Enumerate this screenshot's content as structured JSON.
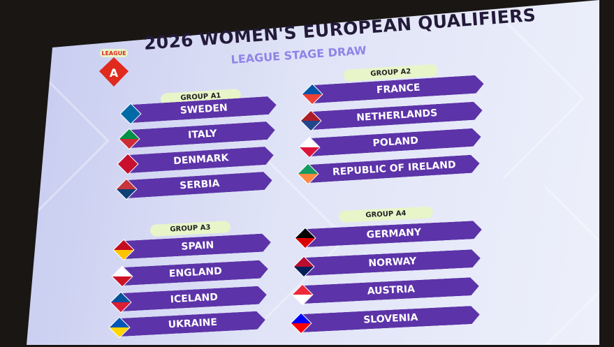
{
  "title": "2026 WOMEN'S EUROPEAN QUALIFIERS",
  "subtitle": "LEAGUE STAGE DRAW",
  "logo": {
    "top": "LEAGUE",
    "letter": "A",
    "color": "#e02a1e"
  },
  "bar_color": "#5c33a8",
  "groups": [
    {
      "name": "GROUP A1",
      "teams": [
        "SWEDEN",
        "ITALY",
        "DENMARK",
        "SERBIA"
      ]
    },
    {
      "name": "GROUP A2",
      "teams": [
        "FRANCE",
        "NETHERLANDS",
        "POLAND",
        "REPUBLIC OF IRELAND"
      ]
    },
    {
      "name": "GROUP A3",
      "teams": [
        "SPAIN",
        "ENGLAND",
        "ICELAND",
        "UKRAINE"
      ]
    },
    {
      "name": "GROUP A4",
      "teams": [
        "GERMANY",
        "NORWAY",
        "AUSTRIA",
        "SLOVENIA"
      ]
    }
  ]
}
